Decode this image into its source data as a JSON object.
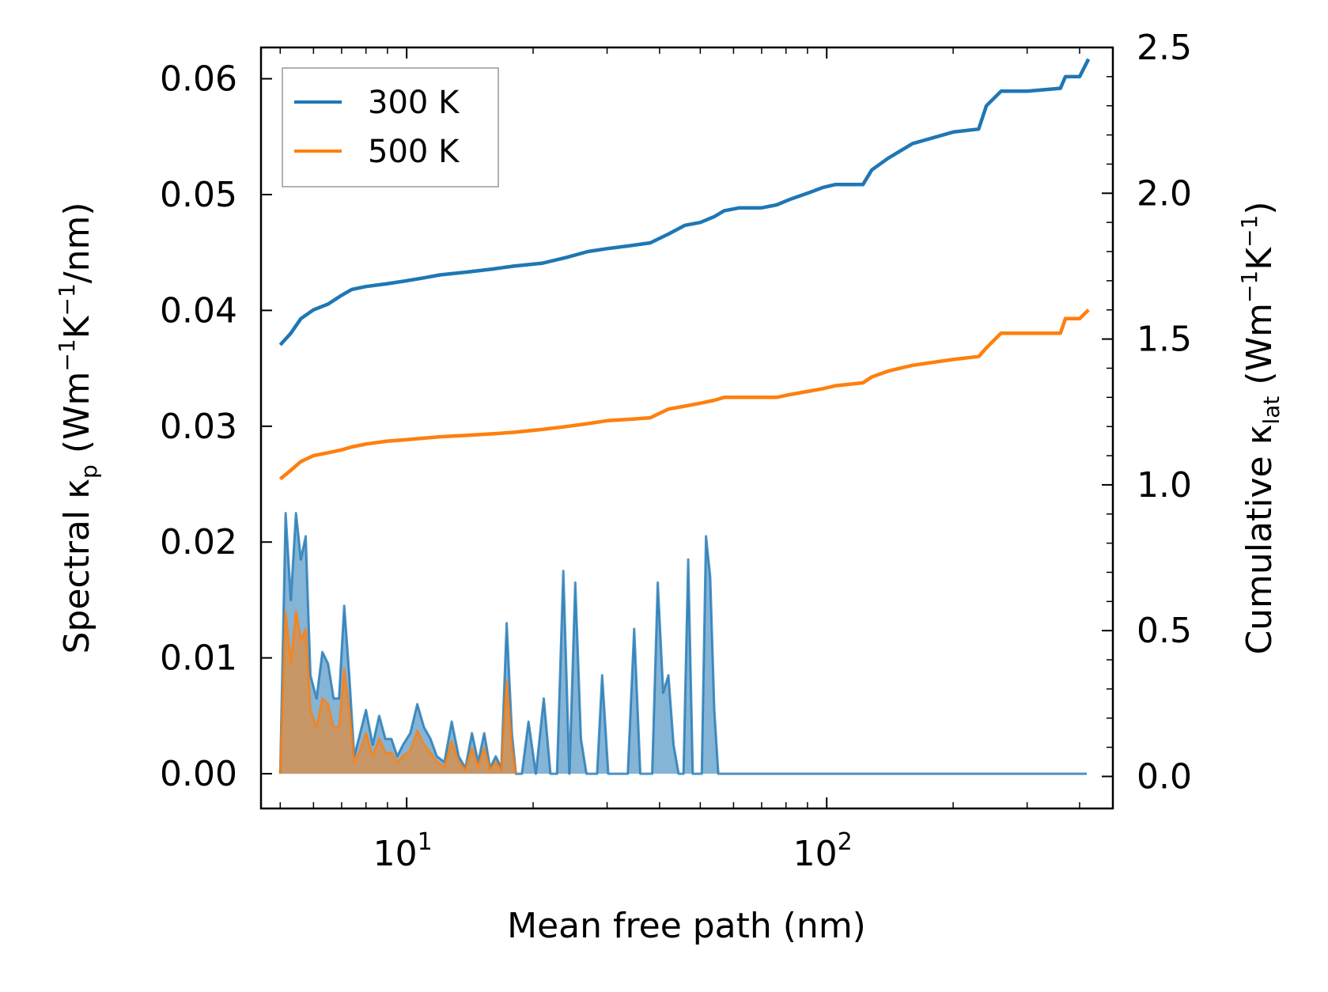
{
  "chart_data": {
    "type": "line",
    "title": "",
    "xlabel": "Mean free path (nm)",
    "ylabel_left": {
      "main": "Spectral κ",
      "sub": "p",
      "unit_open": " (Wm",
      "exp1": "−1",
      "mid": "K",
      "exp2": "−1",
      "unit_close": "/nm)"
    },
    "ylabel_right": {
      "main": "Cumulative κ",
      "sub": "lat",
      "unit_open": " (Wm",
      "exp1": "−1",
      "mid": "K",
      "exp2": "−1",
      "unit_close": ")"
    },
    "x_scale": "log",
    "xlim": [
      4.5,
      480
    ],
    "ylim_left": [
      -0.003,
      0.0627
    ],
    "ylim_right": [
      -0.1099,
      2.5
    ],
    "x_ticks": [
      {
        "base": "10",
        "exp": "1",
        "value": 10
      },
      {
        "base": "10",
        "exp": "2",
        "value": 100
      }
    ],
    "y_ticks_left": [
      "0.00",
      "0.01",
      "0.02",
      "0.03",
      "0.04",
      "0.05",
      "0.06"
    ],
    "y_ticks_right": [
      "0.0",
      "0.5",
      "1.0",
      "1.5",
      "2.0",
      "2.5"
    ],
    "legend": {
      "position": "top-left",
      "entries": [
        "300 K",
        "500 K"
      ]
    },
    "colors": {
      "300 K": "#1f77b4",
      "500 K": "#ff7f0e"
    },
    "cumulative_series": [
      {
        "name": "300 K",
        "axis": "right",
        "x": [
          5.0,
          5.3,
          5.6,
          6.0,
          6.5,
          7.0,
          7.4,
          8.0,
          9.0,
          10.0,
          11.0,
          12.0,
          14.0,
          16.0,
          18.0,
          21.0,
          24.0,
          27.0,
          30.0,
          34.0,
          38.0,
          42.0,
          46.0,
          50.0,
          54.0,
          57.0,
          62.0,
          70.0,
          76.0,
          82.0,
          90.0,
          98.0,
          105.0,
          122.0,
          128.0,
          140.0,
          160.0,
          200.0,
          230.0,
          240.0,
          260.0,
          300.0,
          360.0,
          370.0,
          400.0,
          420.0
        ],
        "y": [
          1.48,
          1.52,
          1.57,
          1.6,
          1.62,
          1.65,
          1.67,
          1.68,
          1.69,
          1.7,
          1.71,
          1.72,
          1.73,
          1.74,
          1.75,
          1.76,
          1.78,
          1.8,
          1.81,
          1.82,
          1.83,
          1.86,
          1.89,
          1.9,
          1.92,
          1.94,
          1.95,
          1.95,
          1.96,
          1.98,
          2.0,
          2.02,
          2.03,
          2.03,
          2.08,
          2.12,
          2.17,
          2.21,
          2.22,
          2.3,
          2.35,
          2.35,
          2.36,
          2.4,
          2.4,
          2.46
        ]
      },
      {
        "name": "500 K",
        "axis": "right",
        "x": [
          5.0,
          5.3,
          5.6,
          6.0,
          6.5,
          7.0,
          7.4,
          8.0,
          9.0,
          10.0,
          11.0,
          12.0,
          14.0,
          16.0,
          18.0,
          21.0,
          24.0,
          27.0,
          30.0,
          34.0,
          38.0,
          42.0,
          46.0,
          50.0,
          54.0,
          57.0,
          62.0,
          70.0,
          76.0,
          82.0,
          90.0,
          98.0,
          105.0,
          122.0,
          128.0,
          140.0,
          160.0,
          200.0,
          230.0,
          240.0,
          260.0,
          300.0,
          360.0,
          370.0,
          400.0,
          420.0
        ],
        "y": [
          1.02,
          1.05,
          1.08,
          1.1,
          1.11,
          1.12,
          1.13,
          1.14,
          1.15,
          1.155,
          1.16,
          1.165,
          1.17,
          1.175,
          1.18,
          1.19,
          1.2,
          1.21,
          1.22,
          1.225,
          1.23,
          1.26,
          1.27,
          1.28,
          1.29,
          1.3,
          1.3,
          1.3,
          1.3,
          1.31,
          1.32,
          1.33,
          1.34,
          1.35,
          1.37,
          1.39,
          1.41,
          1.43,
          1.44,
          1.47,
          1.52,
          1.52,
          1.52,
          1.57,
          1.57,
          1.6
        ]
      }
    ],
    "spectral_series": [
      {
        "name": "300 K",
        "axis": "left",
        "x": [
          5.0,
          5.15,
          5.3,
          5.45,
          5.6,
          5.75,
          5.9,
          6.1,
          6.3,
          6.5,
          6.7,
          6.9,
          7.1,
          7.3,
          7.5,
          7.75,
          8.0,
          8.3,
          8.6,
          8.9,
          9.2,
          9.5,
          9.8,
          10.2,
          10.6,
          11.0,
          11.4,
          11.8,
          12.3,
          12.8,
          13.3,
          13.8,
          14.3,
          14.8,
          15.3,
          15.8,
          16.3,
          16.8,
          17.3,
          17.8,
          18.2,
          18.8,
          19.5,
          20.3,
          21.2,
          22.0,
          22.8,
          23.6,
          24.4,
          25.2,
          26.0,
          26.8,
          27.6,
          28.4,
          29.2,
          30.2,
          31.2,
          32.4,
          33.6,
          34.8,
          36.0,
          37.2,
          38.4,
          39.6,
          40.8,
          42.0,
          43.2,
          44.4,
          45.6,
          46.8,
          48.0,
          49.2,
          50.4,
          51.6,
          52.8,
          54.0,
          55.2,
          56.6,
          58.0,
          61.0,
          66.0,
          70.0,
          72.5,
          75.0,
          78.0,
          80.5,
          82.5,
          84.5,
          86.5,
          90.0,
          92.5,
          95.0,
          97.5,
          100.0,
          102.5,
          105.0,
          110.0,
          118.0,
          121.0,
          124.0,
          127.0,
          131.0,
          134.0,
          137.0,
          150.0,
          157.0,
          160.0,
          163.0,
          180.0,
          193.0,
          197.0,
          201.0,
          212.0,
          227.0,
          232.0,
          237.0,
          242.0,
          247.0,
          252.0,
          330.0,
          350.0,
          357.0,
          364.0,
          385.0,
          400.0,
          408.0,
          416.0
        ],
        "y": [
          0.0,
          0.0225,
          0.015,
          0.0225,
          0.0185,
          0.0205,
          0.0085,
          0.0065,
          0.0105,
          0.0095,
          0.0065,
          0.0065,
          0.0145,
          0.0085,
          0.0015,
          0.0035,
          0.0055,
          0.0025,
          0.005,
          0.003,
          0.003,
          0.0015,
          0.0025,
          0.0035,
          0.006,
          0.004,
          0.003,
          0.0015,
          0.001,
          0.0045,
          0.0015,
          0.0005,
          0.0035,
          0.001,
          0.0035,
          0.0005,
          0.0015,
          0.0005,
          0.013,
          0.0035,
          0.0,
          0.0,
          0.0045,
          0.0,
          0.0065,
          0.0,
          0.0,
          0.0175,
          0.0,
          0.0165,
          0.003,
          0.0,
          0.0,
          0.0,
          0.0085,
          0.0,
          0.0,
          0.0,
          0.0,
          0.0125,
          0.0,
          0.0,
          0.0,
          0.0165,
          0.007,
          0.0085,
          0.0025,
          0.0,
          0.0,
          0.0185,
          0.0,
          0.0,
          0.0,
          0.0205,
          0.017,
          0.0055,
          0.0,
          0.0,
          0.0,
          0.0,
          0.0,
          0.0,
          0.0,
          0.0,
          0.0,
          0.0,
          0.0,
          0.0,
          0.0,
          0.0,
          0.0,
          0.0,
          0.0,
          0.0,
          0.0,
          0.0,
          0.0,
          0.0,
          0.0,
          0.0,
          0.0,
          0.0,
          0.0,
          0.0,
          0.0,
          0.0,
          0.0,
          0.0,
          0.0,
          0.0,
          0.0,
          0.0,
          0.0,
          0.0,
          0.0,
          0.0,
          0.0,
          0.0,
          0.0,
          0.0,
          0.0,
          0.0,
          0.0,
          0.0,
          0.0,
          0.0,
          0.0
        ]
      },
      {
        "name": "500 K",
        "axis": "left",
        "x": [
          5.0,
          5.15,
          5.3,
          5.45,
          5.6,
          5.75,
          5.9,
          6.1,
          6.3,
          6.5,
          6.7,
          6.9,
          7.1,
          7.3,
          7.5,
          7.75,
          8.0,
          8.3,
          8.6,
          8.9,
          9.2,
          9.5,
          9.8,
          10.2,
          10.6,
          11.0,
          11.4,
          11.8,
          12.3,
          12.8,
          13.3,
          13.8,
          14.3,
          14.8,
          15.3,
          15.8,
          16.3,
          16.8,
          17.3,
          17.8,
          18.2
        ],
        "y": [
          0.0,
          0.014,
          0.0095,
          0.014,
          0.0115,
          0.0125,
          0.0055,
          0.004,
          0.0065,
          0.006,
          0.004,
          0.004,
          0.009,
          0.0055,
          0.001,
          0.002,
          0.0035,
          0.0015,
          0.003,
          0.0018,
          0.0018,
          0.001,
          0.0015,
          0.002,
          0.0037,
          0.0025,
          0.0018,
          0.001,
          0.0006,
          0.0028,
          0.001,
          0.0003,
          0.0022,
          0.0006,
          0.0022,
          0.0003,
          0.001,
          0.0003,
          0.008,
          0.0022,
          0.0
        ]
      }
    ]
  }
}
